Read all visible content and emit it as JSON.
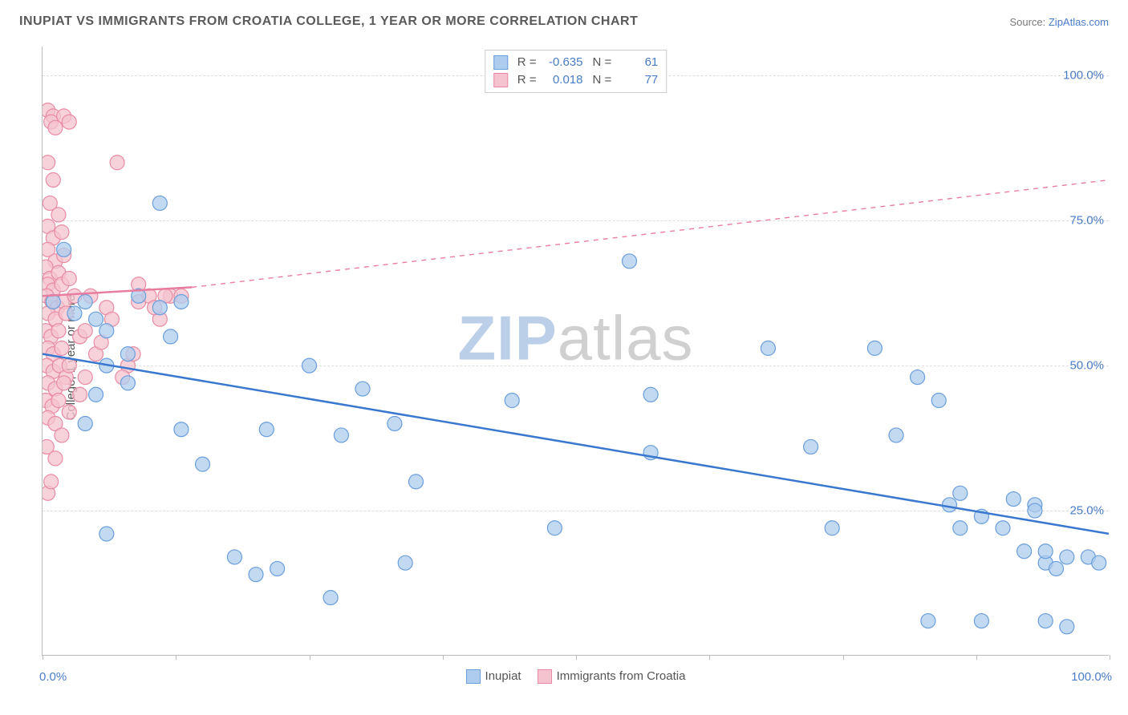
{
  "title": "INUPIAT VS IMMIGRANTS FROM CROATIA COLLEGE, 1 YEAR OR MORE CORRELATION CHART",
  "source_prefix": "Source: ",
  "source_name": "ZipAtlas.com",
  "y_axis_label": "College, 1 year or more",
  "watermark": {
    "part1": "ZIP",
    "part2": "atlas"
  },
  "chart": {
    "type": "scatter",
    "xlim": [
      0,
      100
    ],
    "ylim": [
      0,
      105
    ],
    "y_ticks": [
      25,
      50,
      75,
      100
    ],
    "y_tick_labels": [
      "25.0%",
      "50.0%",
      "75.0%",
      "100.0%"
    ],
    "x_ticks": [
      0,
      12.5,
      25,
      37.5,
      50,
      62.5,
      75,
      87.5,
      100
    ],
    "x_axis_labels": {
      "left": "0.0%",
      "right": "100.0%"
    },
    "background_color": "#ffffff",
    "grid_color": "#dddddd",
    "marker_radius": 9,
    "marker_stroke_width": 1.2,
    "line_width": 2.5,
    "series_a": {
      "name": "Inupiat",
      "fill": "#aeccee",
      "stroke": "#6a9edc",
      "line_color": "#3a78d0",
      "R": "-0.635",
      "N": "61",
      "regression": {
        "x1": 0,
        "y1": 52,
        "x2": 100,
        "y2": 21
      },
      "points": [
        [
          1,
          61
        ],
        [
          2,
          70
        ],
        [
          3,
          59
        ],
        [
          4,
          61
        ],
        [
          5,
          58
        ],
        [
          6,
          56
        ],
        [
          8,
          52
        ],
        [
          9,
          62
        ],
        [
          11,
          60
        ],
        [
          6,
          50
        ],
        [
          8,
          47
        ],
        [
          5,
          45
        ],
        [
          11,
          78
        ],
        [
          13,
          61
        ],
        [
          4,
          40
        ],
        [
          6,
          21
        ],
        [
          12,
          55
        ],
        [
          13,
          39
        ],
        [
          15,
          33
        ],
        [
          18,
          17
        ],
        [
          20,
          14
        ],
        [
          21,
          39
        ],
        [
          22,
          15
        ],
        [
          25,
          50
        ],
        [
          27,
          10
        ],
        [
          28,
          38
        ],
        [
          30,
          46
        ],
        [
          33,
          40
        ],
        [
          34,
          16
        ],
        [
          35,
          30
        ],
        [
          44,
          44
        ],
        [
          48,
          22
        ],
        [
          55,
          68
        ],
        [
          57,
          45
        ],
        [
          57,
          35
        ],
        [
          68,
          53
        ],
        [
          72,
          36
        ],
        [
          74,
          22
        ],
        [
          78,
          53
        ],
        [
          80,
          38
        ],
        [
          82,
          48
        ],
        [
          83,
          6
        ],
        [
          84,
          44
        ],
        [
          85,
          26
        ],
        [
          86,
          22
        ],
        [
          86,
          28
        ],
        [
          88,
          6
        ],
        [
          88,
          24
        ],
        [
          90,
          22
        ],
        [
          91,
          27
        ],
        [
          92,
          18
        ],
        [
          93,
          26
        ],
        [
          93,
          25
        ],
        [
          94,
          16
        ],
        [
          94,
          18
        ],
        [
          95,
          15
        ],
        [
          96,
          17
        ],
        [
          96,
          5
        ],
        [
          98,
          17
        ],
        [
          99,
          16
        ],
        [
          94,
          6
        ]
      ]
    },
    "series_b": {
      "name": "Immigrants from Croatia",
      "fill": "#f4c3cf",
      "stroke": "#e98ba3",
      "line_color": "#e97da0",
      "R": "0.018",
      "N": "77",
      "regression_solid": {
        "x1": 0,
        "y1": 62,
        "x2": 14,
        "y2": 63.5
      },
      "regression_dashed": {
        "x1": 14,
        "y1": 63.5,
        "x2": 100,
        "y2": 82
      },
      "points": [
        [
          0.5,
          94
        ],
        [
          1,
          93
        ],
        [
          0.8,
          92
        ],
        [
          1.2,
          91
        ],
        [
          2,
          93
        ],
        [
          2.5,
          92
        ],
        [
          0.5,
          85
        ],
        [
          1,
          82
        ],
        [
          0.7,
          78
        ],
        [
          1.5,
          76
        ],
        [
          0.5,
          74
        ],
        [
          1,
          72
        ],
        [
          1.8,
          73
        ],
        [
          0.5,
          70
        ],
        [
          1.2,
          68
        ],
        [
          2,
          69
        ],
        [
          0.3,
          67
        ],
        [
          0.7,
          65
        ],
        [
          1.5,
          66
        ],
        [
          0.5,
          64
        ],
        [
          1,
          63
        ],
        [
          1.8,
          64
        ],
        [
          2.5,
          65
        ],
        [
          0.4,
          62
        ],
        [
          0.9,
          61
        ],
        [
          1.4,
          60
        ],
        [
          2,
          61
        ],
        [
          0.5,
          59
        ],
        [
          1.2,
          58
        ],
        [
          2.2,
          59
        ],
        [
          0.3,
          56
        ],
        [
          0.8,
          55
        ],
        [
          1.5,
          56
        ],
        [
          0.5,
          53
        ],
        [
          1,
          52
        ],
        [
          1.8,
          53
        ],
        [
          0.4,
          50
        ],
        [
          1,
          49
        ],
        [
          1.6,
          50
        ],
        [
          2.2,
          48
        ],
        [
          0.5,
          47
        ],
        [
          1.2,
          46
        ],
        [
          2,
          47
        ],
        [
          0.3,
          44
        ],
        [
          0.9,
          43
        ],
        [
          1.5,
          44
        ],
        [
          0.5,
          41
        ],
        [
          1.2,
          40
        ],
        [
          0.4,
          36
        ],
        [
          2.5,
          50
        ],
        [
          3,
          62
        ],
        [
          4,
          48
        ],
        [
          5,
          52
        ],
        [
          6,
          60
        ],
        [
          7,
          85
        ],
        [
          8,
          50
        ],
        [
          9,
          61
        ],
        [
          10,
          62
        ],
        [
          11,
          58
        ],
        [
          12,
          62
        ],
        [
          3.5,
          55
        ],
        [
          4.5,
          62
        ],
        [
          0.5,
          28
        ],
        [
          0.8,
          30
        ],
        [
          1.2,
          34
        ],
        [
          1.8,
          38
        ],
        [
          2.5,
          42
        ],
        [
          3.5,
          45
        ],
        [
          4,
          56
        ],
        [
          5.5,
          54
        ],
        [
          6.5,
          58
        ],
        [
          7.5,
          48
        ],
        [
          8.5,
          52
        ],
        [
          9,
          64
        ],
        [
          10.5,
          60
        ],
        [
          11.5,
          62
        ],
        [
          13,
          62
        ]
      ]
    }
  },
  "legend_top_labels": {
    "R": "R =",
    "N": "N ="
  },
  "legend_bottom": {
    "a": "Inupiat",
    "b": "Immigrants from Croatia"
  }
}
